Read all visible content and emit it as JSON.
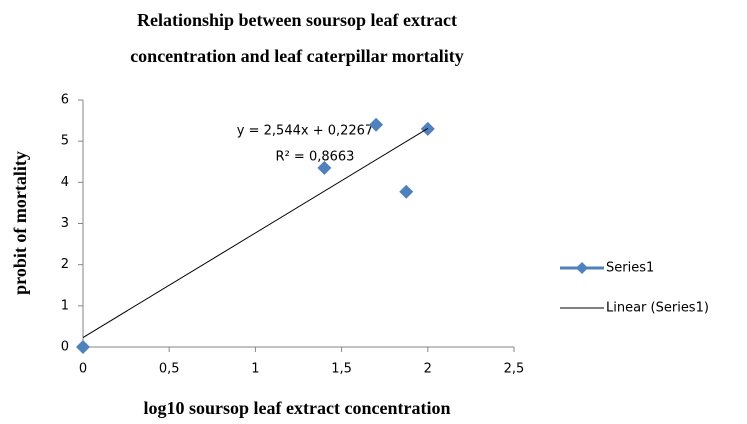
{
  "chart_data": {
    "type": "scatter",
    "title": [
      "Relationship between soursop leaf extract",
      "concentration  and leaf caterpillar  mortality"
    ],
    "xlabel": "log10 soursop  leaf extract concentration",
    "ylabel": "probit  of mortality",
    "series": [
      {
        "name": "Series1",
        "color": "#4f81bd",
        "x": [
          0,
          1.4,
          1.7,
          1.875,
          2
        ],
        "values": [
          0,
          4.35,
          5.4,
          3.77,
          5.3
        ]
      },
      {
        "name": "Linear (Series1)",
        "color": "#000000",
        "kind": "line",
        "x": [
          0,
          2
        ],
        "values": [
          0.23,
          5.31
        ]
      }
    ],
    "annotations": [
      "y = 2,544x + 0,2267",
      "R² = 0,8663"
    ],
    "xlim": [
      0,
      2.5
    ],
    "xticks": [
      0,
      {
        "value": 0.5,
        "label": "0,5"
      },
      1,
      {
        "value": 1.5,
        "label": "1,5"
      },
      2,
      {
        "value": 2.5,
        "label": "2,5"
      }
    ],
    "ylim": [
      0,
      6
    ],
    "yticks": [
      0,
      1,
      2,
      3,
      4,
      5,
      6
    ],
    "grid": false,
    "legend": "right"
  }
}
